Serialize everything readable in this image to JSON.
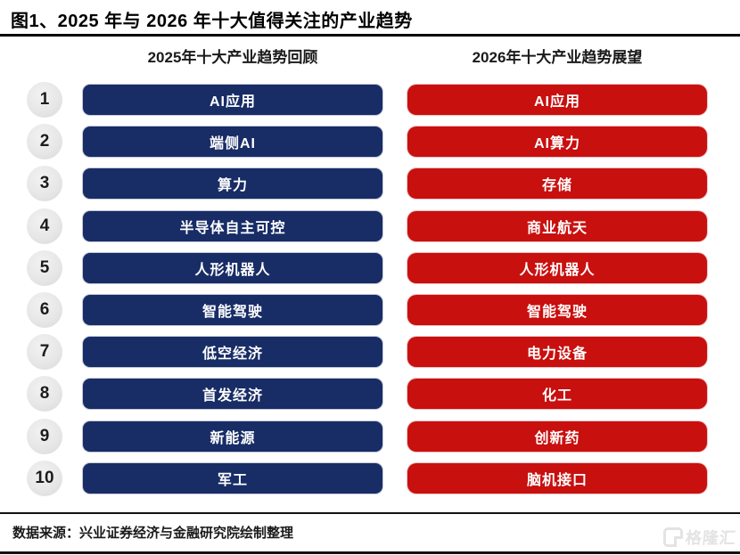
{
  "figure": {
    "source_note": "数据来源：兴业证券经济与金融研究院绘制整理"
  },
  "chart_data": {
    "type": "table",
    "title": "图1、2025 年与 2026 年十大值得关注的产业趋势",
    "columns": [
      {
        "header": "2025年十大产业趋势回顾",
        "accent": "#182c66"
      },
      {
        "header": "2026年十大产业趋势展望",
        "accent": "#c8100f"
      }
    ],
    "rows": [
      {
        "rank": "1",
        "trend_2025": "AI应用",
        "trend_2026": "AI应用"
      },
      {
        "rank": "2",
        "trend_2025": "端侧AI",
        "trend_2026": "AI算力"
      },
      {
        "rank": "3",
        "trend_2025": "算力",
        "trend_2026": "存储"
      },
      {
        "rank": "4",
        "trend_2025": "半导体自主可控",
        "trend_2026": "商业航天"
      },
      {
        "rank": "5",
        "trend_2025": "人形机器人",
        "trend_2026": "人形机器人"
      },
      {
        "rank": "6",
        "trend_2025": "智能驾驶",
        "trend_2026": "智能驾驶"
      },
      {
        "rank": "7",
        "trend_2025": "低空经济",
        "trend_2026": "电力设备"
      },
      {
        "rank": "8",
        "trend_2025": "首发经济",
        "trend_2026": "化工"
      },
      {
        "rank": "9",
        "trend_2025": "新能源",
        "trend_2026": "创新药"
      },
      {
        "rank": "10",
        "trend_2025": "军工",
        "trend_2026": "脑机接口"
      }
    ],
    "layout": {
      "grid": "off",
      "legend": "none",
      "orientation": "two-column ranked list, ranks 1-10 in gray circles on left"
    }
  },
  "watermark": {
    "logo_letter": "G",
    "brand": "格隆汇"
  },
  "colors": {
    "left_bar": "#182c66",
    "right_bar": "#c8100f",
    "bar_text": "#ffffff",
    "rank_circle_bg": "#e6e6e6",
    "rank_circle_text": "#1c1c1c",
    "rule": "#000000",
    "watermark": "#e3e3e3"
  }
}
